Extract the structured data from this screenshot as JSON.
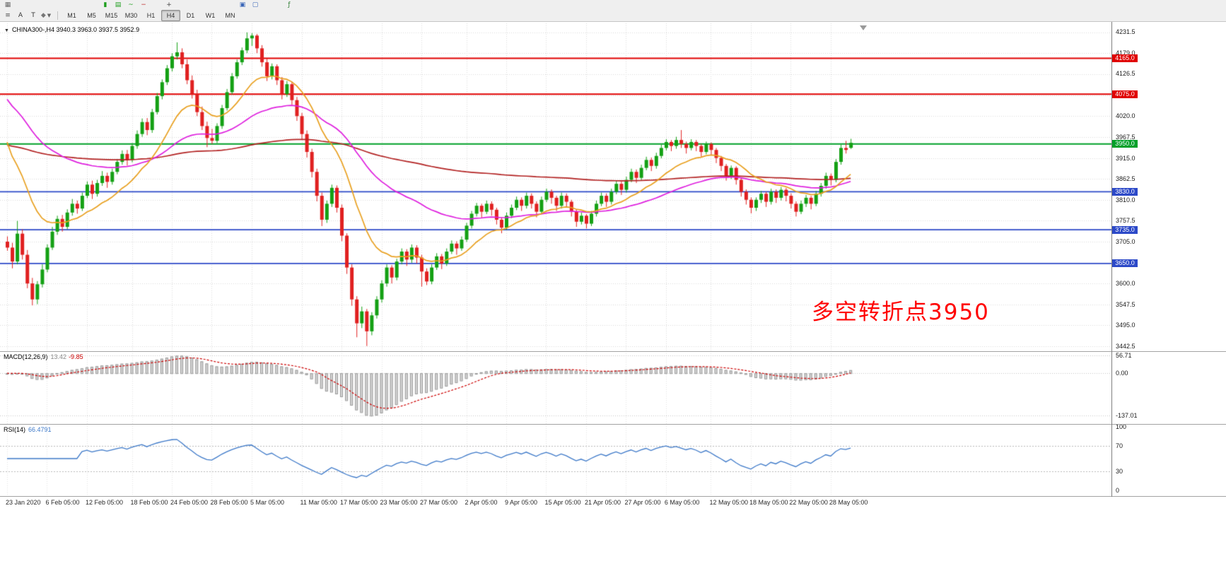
{
  "toolbar": {
    "row1_icons": [
      {
        "name": "menu-grid-icon",
        "glyph": "▦",
        "color": "#6a6a6a"
      },
      {
        "name": "candlestick-chart-icon",
        "glyph": "▮",
        "color": "#1E9E1E"
      },
      {
        "name": "bar-chart-icon",
        "glyph": "▤",
        "color": "#1E9E1E"
      },
      {
        "name": "line-chart-icon",
        "glyph": "~",
        "color": "#1E9E1E"
      },
      {
        "name": "zoom-out-icon",
        "glyph": "−",
        "color": "#C03030"
      },
      {
        "name": "zoom-in-icon",
        "glyph": "+",
        "color": "#444444"
      },
      {
        "name": "tile-windows-icon",
        "glyph": "▣",
        "color": "#3A66B8"
      },
      {
        "name": "new-chart-icon",
        "glyph": "▢",
        "color": "#3A66B8"
      },
      {
        "name": "indicators-icon",
        "glyph": "ƒ",
        "color": "#2E7D32"
      }
    ],
    "row2_icons": [
      {
        "name": "lines-tool-icon",
        "glyph": "≡",
        "color": "#555555"
      },
      {
        "name": "text-label-button",
        "glyph": "A",
        "color": "#333333"
      },
      {
        "name": "text-box-button",
        "glyph": "T",
        "color": "#333333"
      },
      {
        "name": "objects-tool-button",
        "glyph": "◆",
        "color": "#777777",
        "chevron": true
      }
    ],
    "timeframes": {
      "active": "H4",
      "items": [
        {
          "label": "M1"
        },
        {
          "label": "M5"
        },
        {
          "label": "M15"
        },
        {
          "label": "M30"
        },
        {
          "label": "H1"
        },
        {
          "label": "H4"
        },
        {
          "label": "D1"
        },
        {
          "label": "W1"
        },
        {
          "label": "MN"
        }
      ]
    }
  },
  "chart": {
    "symbol_line": "CHINA300-,H4 3940.3 3963.0 3937.5 3952.9",
    "annotation": {
      "text": "多空转折点3950",
      "color": "#FF0000"
    },
    "scale": {
      "top": 4231.5,
      "bottom": 3442.5,
      "step": 52.5
    },
    "y_axis_labels": [
      {
        "value": 4231.5,
        "text": "4231.5"
      },
      {
        "value": 4179.0,
        "text": "4179.0"
      },
      {
        "value": 4126.5,
        "text": "4126.5"
      },
      {
        "value": 4020.0,
        "text": "4020.0"
      },
      {
        "value": 3967.5,
        "text": "3967.5"
      },
      {
        "value": 3915.0,
        "text": "3915.0"
      },
      {
        "value": 3862.5,
        "text": "3862.5"
      },
      {
        "value": 3810.0,
        "text": "3810.0"
      },
      {
        "value": 3757.5,
        "text": "3757.5"
      },
      {
        "value": 3705.0,
        "text": "3705.0"
      },
      {
        "value": 3600.0,
        "text": "3600.0"
      },
      {
        "value": 3547.5,
        "text": "3547.5"
      },
      {
        "value": 3495.0,
        "text": "3495.0"
      },
      {
        "value": 3442.5,
        "text": "3442.5"
      }
    ],
    "hlines": [
      {
        "price": 4165.0,
        "color": "#E00000",
        "label": "4165.0"
      },
      {
        "price": 4075.0,
        "color": "#E00000",
        "label": "4075.0"
      },
      {
        "price": 3950.0,
        "color": "#00A029",
        "label": "3950.0"
      },
      {
        "price": 3830.0,
        "color": "#2C49C8",
        "label": "3830.0"
      },
      {
        "price": 3735.0,
        "color": "#2C49C8",
        "label": "3735.0"
      },
      {
        "price": 3650.0,
        "color": "#2C49C8",
        "label": "3650.0"
      }
    ],
    "x_axis_labels": [
      {
        "bar": 0,
        "text": "23 Jan 2020"
      },
      {
        "bar": 8,
        "text": "6 Feb 05:00"
      },
      {
        "bar": 16,
        "text": "12 Feb 05:00"
      },
      {
        "bar": 25,
        "text": "18 Feb 05:00"
      },
      {
        "bar": 33,
        "text": "24 Feb 05:00"
      },
      {
        "bar": 41,
        "text": "28 Feb 05:00"
      },
      {
        "bar": 49,
        "text": "5 Mar 05:00"
      },
      {
        "bar": 59,
        "text": "11 Mar 05:00"
      },
      {
        "bar": 67,
        "text": "17 Mar 05:00"
      },
      {
        "bar": 75,
        "text": "23 Mar 05:00"
      },
      {
        "bar": 83,
        "text": "27 Mar 05:00"
      },
      {
        "bar": 92,
        "text": "2 Apr 05:00"
      },
      {
        "bar": 100,
        "text": "9 Apr 05:00"
      },
      {
        "bar": 108,
        "text": "15 Apr 05:00"
      },
      {
        "bar": 116,
        "text": "21 Apr 05:00"
      },
      {
        "bar": 124,
        "text": "27 Apr 05:00"
      },
      {
        "bar": 132,
        "text": "6 May 05:00"
      },
      {
        "bar": 141,
        "text": "12 May 05:00"
      },
      {
        "bar": 149,
        "text": "18 May 05:00"
      },
      {
        "bar": 157,
        "text": "22 May 05:00"
      },
      {
        "bar": 165,
        "text": "28 May 05:00"
      }
    ],
    "colors": {
      "up": "#14A014",
      "down": "#E02020",
      "grid": "#D9D9D9",
      "ma_fast_orange": "#E8A020",
      "ma_mid_magenta": "#DE1FDE",
      "ma_slow_red": "#B22222"
    },
    "moving_averages": [
      {
        "name": "ma-slow",
        "period": 200,
        "seed": 3950,
        "color_key": "ma_slow_red"
      },
      {
        "name": "ma-mid",
        "period": 48,
        "seed": 4078,
        "color_key": "ma_mid_magenta"
      },
      {
        "name": "ma-fast",
        "period": 16,
        "seed": 3990,
        "color_key": "ma_fast_orange"
      }
    ],
    "candles": [
      [
        3705,
        3718,
        3682,
        3690
      ],
      [
        3690,
        3702,
        3638,
        3655
      ],
      [
        3655,
        3757,
        3648,
        3725
      ],
      [
        3725,
        3736,
        3660,
        3672
      ],
      [
        3672,
        3684,
        3588,
        3600
      ],
      [
        3600,
        3614,
        3545,
        3560
      ],
      [
        3560,
        3606,
        3548,
        3598
      ],
      [
        3598,
        3648,
        3590,
        3635
      ],
      [
        3635,
        3698,
        3628,
        3690
      ],
      [
        3690,
        3742,
        3684,
        3730
      ],
      [
        3730,
        3770,
        3722,
        3762
      ],
      [
        3762,
        3772,
        3730,
        3742
      ],
      [
        3742,
        3786,
        3736,
        3778
      ],
      [
        3778,
        3812,
        3770,
        3800
      ],
      [
        3800,
        3808,
        3775,
        3788
      ],
      [
        3788,
        3828,
        3782,
        3820
      ],
      [
        3820,
        3856,
        3814,
        3848
      ],
      [
        3848,
        3858,
        3812,
        3825
      ],
      [
        3825,
        3860,
        3818,
        3852
      ],
      [
        3852,
        3882,
        3845,
        3870
      ],
      [
        3870,
        3878,
        3840,
        3855
      ],
      [
        3855,
        3888,
        3848,
        3880
      ],
      [
        3880,
        3912,
        3874,
        3905
      ],
      [
        3905,
        3934,
        3898,
        3925
      ],
      [
        3925,
        3935,
        3896,
        3910
      ],
      [
        3910,
        3952,
        3904,
        3945
      ],
      [
        3945,
        3984,
        3938,
        3975
      ],
      [
        3975,
        4014,
        3968,
        4005
      ],
      [
        4005,
        4015,
        3972,
        3985
      ],
      [
        3985,
        4038,
        3978,
        4030
      ],
      [
        4030,
        4078,
        4024,
        4070
      ],
      [
        4070,
        4112,
        4062,
        4105
      ],
      [
        4105,
        4148,
        4098,
        4140
      ],
      [
        4140,
        4178,
        4132,
        4170
      ],
      [
        4170,
        4205,
        4162,
        4180
      ],
      [
        4180,
        4190,
        4140,
        4150
      ],
      [
        4150,
        4162,
        4100,
        4110
      ],
      [
        4110,
        4122,
        4064,
        4075
      ],
      [
        4075,
        4086,
        4020,
        4030
      ],
      [
        4030,
        4044,
        3985,
        3995
      ],
      [
        3995,
        4006,
        3942,
        3965
      ],
      [
        3965,
        3988,
        3950,
        3958
      ],
      [
        3958,
        4002,
        3952,
        3995
      ],
      [
        3995,
        4048,
        3988,
        4040
      ],
      [
        4040,
        4088,
        4034,
        4080
      ],
      [
        4080,
        4128,
        4074,
        4120
      ],
      [
        4120,
        4162,
        4114,
        4155
      ],
      [
        4155,
        4192,
        4148,
        4185
      ],
      [
        4185,
        4230,
        4178,
        4215
      ],
      [
        4215,
        4228,
        4196,
        4222
      ],
      [
        4222,
        4226,
        4178,
        4190
      ],
      [
        4190,
        4198,
        4144,
        4155
      ],
      [
        4155,
        4164,
        4108,
        4120
      ],
      [
        4120,
        4152,
        4112,
        4145
      ],
      [
        4145,
        4150,
        4098,
        4110
      ],
      [
        4110,
        4118,
        4062,
        4075
      ],
      [
        4075,
        4108,
        4068,
        4100
      ],
      [
        4100,
        4106,
        4048,
        4060
      ],
      [
        4060,
        4068,
        4008,
        4020
      ],
      [
        4020,
        4028,
        3962,
        3975
      ],
      [
        3975,
        3984,
        3916,
        3930
      ],
      [
        3930,
        3938,
        3866,
        3880
      ],
      [
        3880,
        3888,
        3806,
        3820
      ],
      [
        3820,
        3828,
        3744,
        3760
      ],
      [
        3760,
        3808,
        3752,
        3800
      ],
      [
        3800,
        3848,
        3792,
        3840
      ],
      [
        3840,
        3846,
        3778,
        3790
      ],
      [
        3790,
        3798,
        3706,
        3720
      ],
      [
        3720,
        3726,
        3624,
        3640
      ],
      [
        3640,
        3648,
        3544,
        3560
      ],
      [
        3560,
        3568,
        3465,
        3500
      ],
      [
        3500,
        3542,
        3488,
        3530
      ],
      [
        3530,
        3536,
        3443,
        3480
      ],
      [
        3480,
        3528,
        3470,
        3520
      ],
      [
        3520,
        3568,
        3512,
        3560
      ],
      [
        3560,
        3608,
        3552,
        3600
      ],
      [
        3600,
        3648,
        3592,
        3640
      ],
      [
        3640,
        3646,
        3600,
        3615
      ],
      [
        3615,
        3662,
        3608,
        3655
      ],
      [
        3655,
        3688,
        3648,
        3680
      ],
      [
        3680,
        3686,
        3644,
        3660
      ],
      [
        3660,
        3698,
        3652,
        3690
      ],
      [
        3690,
        3696,
        3650,
        3665
      ],
      [
        3665,
        3672,
        3592,
        3630
      ],
      [
        3630,
        3638,
        3596,
        3605
      ],
      [
        3605,
        3648,
        3598,
        3640
      ],
      [
        3640,
        3676,
        3634,
        3668
      ],
      [
        3668,
        3674,
        3636,
        3650
      ],
      [
        3650,
        3688,
        3644,
        3680
      ],
      [
        3680,
        3708,
        3674,
        3700
      ],
      [
        3700,
        3706,
        3672,
        3688
      ],
      [
        3688,
        3718,
        3682,
        3710
      ],
      [
        3710,
        3752,
        3704,
        3745
      ],
      [
        3745,
        3782,
        3738,
        3775
      ],
      [
        3775,
        3802,
        3768,
        3795
      ],
      [
        3795,
        3800,
        3764,
        3780
      ],
      [
        3780,
        3808,
        3774,
        3800
      ],
      [
        3800,
        3806,
        3770,
        3785
      ],
      [
        3785,
        3790,
        3748,
        3760
      ],
      [
        3760,
        3766,
        3726,
        3740
      ],
      [
        3740,
        3778,
        3734,
        3770
      ],
      [
        3770,
        3798,
        3764,
        3790
      ],
      [
        3790,
        3818,
        3784,
        3810
      ],
      [
        3810,
        3816,
        3782,
        3795
      ],
      [
        3795,
        3828,
        3788,
        3820
      ],
      [
        3820,
        3826,
        3788,
        3800
      ],
      [
        3800,
        3806,
        3766,
        3780
      ],
      [
        3780,
        3818,
        3774,
        3810
      ],
      [
        3810,
        3838,
        3804,
        3830
      ],
      [
        3830,
        3836,
        3800,
        3815
      ],
      [
        3815,
        3820,
        3782,
        3795
      ],
      [
        3795,
        3828,
        3788,
        3820
      ],
      [
        3820,
        3826,
        3792,
        3805
      ],
      [
        3805,
        3810,
        3768,
        3780
      ],
      [
        3780,
        3786,
        3742,
        3755
      ],
      [
        3755,
        3778,
        3748,
        3770
      ],
      [
        3770,
        3774,
        3738,
        3750
      ],
      [
        3750,
        3782,
        3744,
        3775
      ],
      [
        3775,
        3808,
        3768,
        3800
      ],
      [
        3800,
        3828,
        3794,
        3820
      ],
      [
        3820,
        3826,
        3792,
        3805
      ],
      [
        3805,
        3838,
        3798,
        3830
      ],
      [
        3830,
        3858,
        3824,
        3850
      ],
      [
        3850,
        3856,
        3822,
        3835
      ],
      [
        3835,
        3868,
        3828,
        3860
      ],
      [
        3860,
        3888,
        3854,
        3880
      ],
      [
        3880,
        3886,
        3852,
        3865
      ],
      [
        3865,
        3898,
        3858,
        3890
      ],
      [
        3890,
        3918,
        3884,
        3910
      ],
      [
        3910,
        3916,
        3882,
        3895
      ],
      [
        3895,
        3928,
        3888,
        3920
      ],
      [
        3920,
        3948,
        3914,
        3940
      ],
      [
        3940,
        3962,
        3934,
        3955
      ],
      [
        3955,
        3960,
        3932,
        3945
      ],
      [
        3945,
        3968,
        3938,
        3960
      ],
      [
        3960,
        3985,
        3940,
        3950
      ],
      [
        3950,
        3956,
        3926,
        3940
      ],
      [
        3940,
        3962,
        3934,
        3955
      ],
      [
        3955,
        3960,
        3932,
        3945
      ],
      [
        3945,
        3950,
        3918,
        3930
      ],
      [
        3930,
        3956,
        3924,
        3950
      ],
      [
        3950,
        3954,
        3922,
        3935
      ],
      [
        3935,
        3940,
        3902,
        3915
      ],
      [
        3915,
        3920,
        3882,
        3895
      ],
      [
        3895,
        3900,
        3858,
        3870
      ],
      [
        3870,
        3896,
        3862,
        3890
      ],
      [
        3890,
        3894,
        3848,
        3860
      ],
      [
        3860,
        3866,
        3818,
        3830
      ],
      [
        3830,
        3836,
        3798,
        3810
      ],
      [
        3810,
        3816,
        3776,
        3790
      ],
      [
        3790,
        3816,
        3782,
        3810
      ],
      [
        3810,
        3832,
        3802,
        3825
      ],
      [
        3825,
        3830,
        3792,
        3805
      ],
      [
        3805,
        3838,
        3798,
        3830
      ],
      [
        3830,
        3836,
        3802,
        3815
      ],
      [
        3815,
        3842,
        3808,
        3835
      ],
      [
        3835,
        3840,
        3806,
        3820
      ],
      [
        3820,
        3826,
        3788,
        3800
      ],
      [
        3800,
        3806,
        3768,
        3780
      ],
      [
        3780,
        3808,
        3774,
        3800
      ],
      [
        3800,
        3822,
        3792,
        3815
      ],
      [
        3815,
        3820,
        3786,
        3800
      ],
      [
        3800,
        3832,
        3794,
        3825
      ],
      [
        3825,
        3852,
        3818,
        3845
      ],
      [
        3845,
        3878,
        3838,
        3870
      ],
      [
        3870,
        3876,
        3846,
        3860
      ],
      [
        3860,
        3912,
        3854,
        3905
      ],
      [
        3905,
        3948,
        3898,
        3940
      ],
      [
        3940,
        3958,
        3926,
        3935
      ],
      [
        3940.3,
        3963.0,
        3937.5,
        3952.9
      ]
    ]
  },
  "macd": {
    "label": "MACD(12,26,9)",
    "value_main": "13.42",
    "value_signal": "-9.85",
    "params": {
      "fast": 12,
      "slow": 26,
      "signal": 9
    },
    "axis_labels": [
      {
        "value": 56.71,
        "text": "56.71"
      },
      {
        "value": 0,
        "text": "0.00"
      },
      {
        "value": -137.01,
        "text": "-137.01"
      }
    ],
    "range": {
      "max": 62,
      "min": -150
    },
    "colors": {
      "hist_fill": "#D6D6D6",
      "hist_stroke": "#9A9A9A",
      "signal": "#CC0000"
    }
  },
  "rsi": {
    "label": "RSI(14)",
    "value": "66.4791",
    "period": 14,
    "axis_labels": [
      {
        "value": 100,
        "text": "100"
      },
      {
        "value": 70,
        "text": "70"
      },
      {
        "value": 30,
        "text": "30"
      },
      {
        "value": 0,
        "text": "0"
      }
    ],
    "levels": [
      70,
      30
    ],
    "color": "#3C78C8"
  }
}
